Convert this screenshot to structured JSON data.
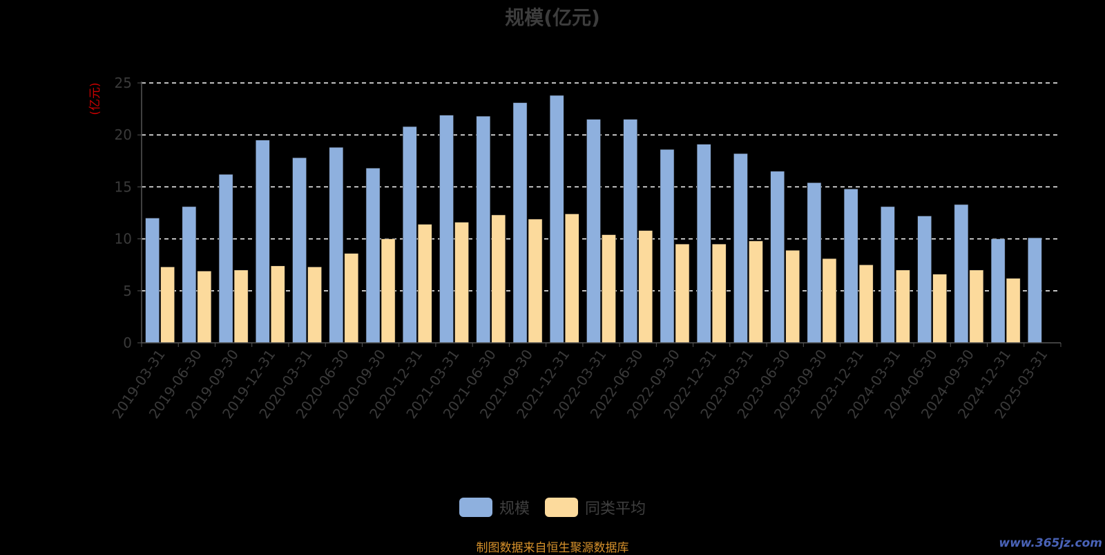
{
  "chart_data": {
    "type": "bar",
    "title": "规模(亿元)",
    "ylabel": "(亿元)",
    "ylim": [
      0,
      25
    ],
    "yticks": [
      0,
      5,
      10,
      15,
      20,
      25
    ],
    "grid": true,
    "legend_position": "bottom",
    "categories": [
      "2019-03-31",
      "2019-06-30",
      "2019-09-30",
      "2019-12-31",
      "2020-03-31",
      "2020-06-30",
      "2020-09-30",
      "2020-12-31",
      "2021-03-31",
      "2021-06-30",
      "2021-09-30",
      "2021-12-31",
      "2022-03-31",
      "2022-06-30",
      "2022-09-30",
      "2022-12-31",
      "2023-03-31",
      "2023-06-30",
      "2023-09-30",
      "2023-12-31",
      "2024-03-31",
      "2024-06-30",
      "2024-09-30",
      "2024-12-31",
      "2025-03-31"
    ],
    "series": [
      {
        "name": "规模",
        "color": "#8eb0de",
        "values": [
          12.0,
          13.1,
          16.2,
          19.5,
          17.8,
          18.8,
          16.8,
          20.8,
          21.9,
          21.8,
          23.1,
          23.8,
          21.5,
          21.5,
          18.6,
          19.1,
          18.2,
          16.5,
          15.4,
          14.8,
          13.1,
          12.2,
          13.3,
          10.0,
          10.1
        ]
      },
      {
        "name": "同类平均",
        "color": "#fcda9c",
        "values": [
          7.3,
          6.9,
          7.0,
          7.4,
          7.3,
          8.6,
          10.0,
          11.4,
          11.6,
          12.3,
          11.9,
          12.4,
          10.4,
          10.8,
          9.5,
          9.5,
          9.8,
          8.9,
          8.1,
          7.5,
          7.0,
          6.6,
          7.0,
          6.2,
          null
        ]
      }
    ]
  },
  "footer": {
    "source_note": "制图数据来自恒生聚源数据库",
    "watermark": "www.365jz.com"
  }
}
